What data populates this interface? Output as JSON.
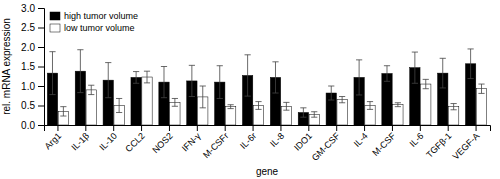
{
  "chart_data": {
    "type": "bar",
    "xlabel": "gene",
    "ylabel": "rel. mRNA expression",
    "categories": [
      "Arg1",
      "IL-1β",
      "IL-10",
      "CCL2",
      "NOS2",
      "IFN-γ",
      "M-CSFr",
      "IL-6r",
      "IL-8",
      "IDO1",
      "GM-CSF",
      "IL-4",
      "M-CSF",
      "IL-6",
      "TGFβ-1",
      "VEGF-A"
    ],
    "series": [
      {
        "name": "high tumor volume",
        "color": "#000000",
        "values": [
          1.33,
          1.38,
          1.15,
          1.22,
          1.1,
          1.13,
          1.1,
          1.27,
          1.22,
          0.32,
          0.82,
          1.22,
          1.32,
          1.47,
          1.33,
          1.57
        ],
        "errors": [
          0.55,
          0.55,
          0.45,
          0.15,
          0.4,
          0.4,
          0.42,
          0.53,
          0.4,
          0.12,
          0.18,
          0.45,
          0.2,
          0.4,
          0.38,
          0.38
        ]
      },
      {
        "name": "low tumor volume",
        "color": "#ffffff",
        "values": [
          0.35,
          0.9,
          0.5,
          1.23,
          0.58,
          0.72,
          0.47,
          0.5,
          0.48,
          0.27,
          0.65,
          0.5,
          0.52,
          1.05,
          0.47,
          0.93
        ],
        "errors": [
          0.12,
          0.12,
          0.18,
          0.15,
          0.1,
          0.28,
          0.05,
          0.1,
          0.1,
          0.07,
          0.08,
          0.1,
          0.05,
          0.12,
          0.08,
          0.12
        ]
      }
    ],
    "ylim": [
      0,
      3.0
    ],
    "yticks": [
      {
        "value": 0,
        "label": "0.0"
      },
      0.5,
      {
        "value": 1,
        "label": "1.0"
      },
      1.5,
      {
        "value": 2,
        "label": "2.0"
      },
      2.5,
      {
        "value": 3,
        "label": "3.0"
      }
    ],
    "legend": "upper left",
    "grid": false
  }
}
